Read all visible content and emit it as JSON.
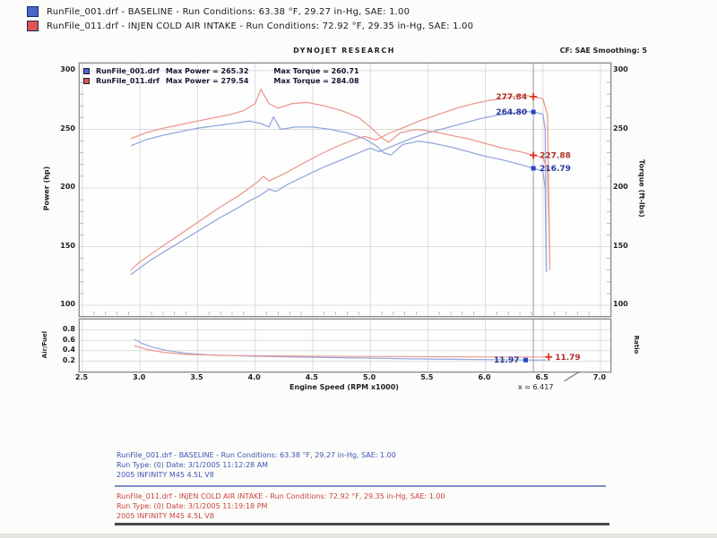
{
  "header": {
    "runs": [
      {
        "swatch_color": "#4a66cc",
        "text": "RunFile_001.drf - BASELINE  -  Run Conditions: 63.38 °F, 29.27 in-Hg, SAE: 1.00"
      },
      {
        "swatch_color": "#e05450",
        "text": "RunFile_011.drf - INJEN COLD AIR INTAKE  -  Run Conditions: 72.92 °F, 29.35 in-Hg, SAE: 1.00"
      }
    ]
  },
  "chart": {
    "brand": "DYNOJET RESEARCH",
    "correction": "CF: SAE   Smoothing: 5",
    "legend": [
      {
        "swatch_color": "#4a66cc",
        "file": "RunFile_001.drf",
        "max_power": "Max Power = 265.32",
        "max_torque": "Max Torque = 260.71"
      },
      {
        "swatch_color": "#e05450",
        "file": "RunFile_011.drf",
        "max_power": "Max Power = 279.54",
        "max_torque": "Max Torque = 284.08"
      }
    ],
    "x_axis_title": "Engine Speed (RPM x1000)",
    "cursor_annotation": "x = 6.417"
  },
  "chart_data": {
    "type": "line",
    "title": "DYNOJET RESEARCH",
    "xlabel": "Engine Speed (RPM x1000)",
    "x_range": [
      2.5,
      7.0
    ],
    "x_ticks": [
      2.5,
      3.0,
      3.5,
      4.0,
      4.5,
      5.0,
      5.5,
      6.0,
      6.5,
      7.0
    ],
    "cursor_x": 6.417,
    "grid": true,
    "main_panel": {
      "left_axis": {
        "label": "Power (hp)",
        "range": [
          100,
          300
        ],
        "ticks": [
          300,
          250,
          200,
          150,
          100
        ]
      },
      "right_axis": {
        "label": "Torque (ft-lbs)",
        "range": [
          100,
          300
        ],
        "ticks": [
          300,
          250,
          200,
          150,
          100
        ]
      },
      "series": [
        {
          "name": "baseline-power",
          "color": "#93a8dc",
          "axis": "left",
          "points": [
            [
              2.92,
              126
            ],
            [
              3.0,
              132
            ],
            [
              3.1,
              139
            ],
            [
              3.25,
              148
            ],
            [
              3.4,
              157
            ],
            [
              3.55,
              166
            ],
            [
              3.7,
              175
            ],
            [
              3.85,
              183
            ],
            [
              3.95,
              189
            ],
            [
              4.05,
              194
            ],
            [
              4.12,
              199
            ],
            [
              4.18,
              197
            ],
            [
              4.3,
              204
            ],
            [
              4.45,
              211
            ],
            [
              4.6,
              218
            ],
            [
              4.75,
              224
            ],
            [
              4.9,
              230
            ],
            [
              5.0,
              234
            ],
            [
              5.08,
              231
            ],
            [
              5.2,
              236
            ],
            [
              5.35,
              242
            ],
            [
              5.5,
              247
            ],
            [
              5.65,
              251
            ],
            [
              5.8,
              255
            ],
            [
              5.95,
              259
            ],
            [
              6.1,
              262
            ],
            [
              6.25,
              264
            ],
            [
              6.35,
              265.3
            ],
            [
              6.42,
              264.8
            ],
            [
              6.5,
              263
            ],
            [
              6.52,
              250
            ],
            [
              6.53,
              128
            ]
          ]
        },
        {
          "name": "injen-power",
          "color": "#eb9a90",
          "axis": "left",
          "points": [
            [
              2.92,
              130
            ],
            [
              3.0,
              137
            ],
            [
              3.1,
              144
            ],
            [
              3.25,
              154
            ],
            [
              3.4,
              164
            ],
            [
              3.55,
              174
            ],
            [
              3.7,
              184
            ],
            [
              3.85,
              193
            ],
            [
              3.95,
              200
            ],
            [
              4.02,
              205
            ],
            [
              4.07,
              210
            ],
            [
              4.12,
              206
            ],
            [
              4.25,
              212
            ],
            [
              4.4,
              220
            ],
            [
              4.55,
              228
            ],
            [
              4.7,
              235
            ],
            [
              4.85,
              241
            ],
            [
              4.95,
              244
            ],
            [
              5.05,
              241
            ],
            [
              5.15,
              246
            ],
            [
              5.3,
              252
            ],
            [
              5.45,
              258
            ],
            [
              5.6,
              263
            ],
            [
              5.75,
              268
            ],
            [
              5.9,
              272
            ],
            [
              6.05,
              275
            ],
            [
              6.2,
              277
            ],
            [
              6.32,
              279.5
            ],
            [
              6.42,
              277.8
            ],
            [
              6.5,
              276
            ],
            [
              6.54,
              262
            ],
            [
              6.56,
              130
            ]
          ]
        },
        {
          "name": "baseline-torque",
          "color": "#93a8dc",
          "axis": "right",
          "points": [
            [
              2.92,
              236
            ],
            [
              3.05,
              241
            ],
            [
              3.2,
              245
            ],
            [
              3.35,
              248
            ],
            [
              3.5,
              251
            ],
            [
              3.65,
              253
            ],
            [
              3.8,
              255
            ],
            [
              3.95,
              257
            ],
            [
              4.05,
              255
            ],
            [
              4.12,
              252
            ],
            [
              4.16,
              260.7
            ],
            [
              4.22,
              250
            ],
            [
              4.35,
              252
            ],
            [
              4.5,
              252
            ],
            [
              4.65,
              250
            ],
            [
              4.8,
              247
            ],
            [
              4.95,
              242
            ],
            [
              5.05,
              236
            ],
            [
              5.12,
              230
            ],
            [
              5.18,
              228
            ],
            [
              5.28,
              237
            ],
            [
              5.42,
              240
            ],
            [
              5.55,
              238
            ],
            [
              5.7,
              235
            ],
            [
              5.85,
              231
            ],
            [
              6.0,
              227
            ],
            [
              6.15,
              224
            ],
            [
              6.3,
              220
            ],
            [
              6.42,
              216.8
            ],
            [
              6.5,
              214
            ],
            [
              6.52,
              200
            ],
            [
              6.53,
              130
            ]
          ]
        },
        {
          "name": "injen-torque",
          "color": "#eb9a90",
          "axis": "right",
          "points": [
            [
              2.92,
              242
            ],
            [
              3.05,
              247
            ],
            [
              3.2,
              251
            ],
            [
              3.35,
              254
            ],
            [
              3.5,
              257
            ],
            [
              3.65,
              260
            ],
            [
              3.8,
              263
            ],
            [
              3.9,
              266
            ],
            [
              4.0,
              272
            ],
            [
              4.05,
              284.1
            ],
            [
              4.12,
              272
            ],
            [
              4.2,
              268
            ],
            [
              4.32,
              272
            ],
            [
              4.45,
              273
            ],
            [
              4.6,
              270
            ],
            [
              4.75,
              266
            ],
            [
              4.9,
              260
            ],
            [
              5.0,
              252
            ],
            [
              5.1,
              243
            ],
            [
              5.16,
              239
            ],
            [
              5.26,
              247
            ],
            [
              5.4,
              250
            ],
            [
              5.55,
              248
            ],
            [
              5.7,
              245
            ],
            [
              5.85,
              242
            ],
            [
              6.0,
              238
            ],
            [
              6.15,
              234
            ],
            [
              6.3,
              231
            ],
            [
              6.42,
              227.9
            ],
            [
              6.5,
              226
            ],
            [
              6.54,
              215
            ],
            [
              6.56,
              135
            ]
          ]
        }
      ],
      "labels": [
        {
          "text": "277.84",
          "x": 6.417,
          "value": 277.84,
          "series": "injen-power",
          "marker": "cross",
          "color": "#b03028",
          "marker_color": "#e03020",
          "side": "left"
        },
        {
          "text": "264.80",
          "x": 6.417,
          "value": 264.8,
          "series": "baseline-power",
          "marker": "square",
          "color": "#283898",
          "marker_color": "#2848c0",
          "side": "left"
        },
        {
          "text": "227.88",
          "x": 6.417,
          "value": 227.88,
          "series": "injen-torque",
          "marker": "cross",
          "color": "#b03028",
          "marker_color": "#e03020",
          "side": "right"
        },
        {
          "text": "216.79",
          "x": 6.417,
          "value": 216.79,
          "series": "baseline-torque",
          "marker": "square",
          "color": "#283898",
          "marker_color": "#2848c0",
          "side": "right"
        }
      ]
    },
    "af_panel": {
      "left_axis": {
        "label": "Air/Fuel",
        "range": [
          0,
          1
        ],
        "ticks": [
          0.8,
          0.6,
          0.4,
          0.2
        ]
      },
      "right_axis": {
        "label": "Ratio"
      },
      "series": [
        {
          "name": "baseline-airfuel",
          "color": "#93a8dc",
          "points": [
            [
              2.95,
              0.62
            ],
            [
              3.02,
              0.54
            ],
            [
              3.12,
              0.46
            ],
            [
              3.25,
              0.4
            ],
            [
              3.4,
              0.35
            ],
            [
              3.6,
              0.32
            ],
            [
              3.9,
              0.3
            ],
            [
              4.3,
              0.28
            ],
            [
              4.9,
              0.26
            ],
            [
              5.5,
              0.24
            ],
            [
              6.0,
              0.23
            ],
            [
              6.42,
              0.22
            ],
            [
              6.53,
              0.22
            ]
          ]
        },
        {
          "name": "injen-airfuel",
          "color": "#eb9a90",
          "points": [
            [
              2.95,
              0.5
            ],
            [
              3.05,
              0.43
            ],
            [
              3.2,
              0.37
            ],
            [
              3.4,
              0.33
            ],
            [
              3.7,
              0.31
            ],
            [
              4.2,
              0.3
            ],
            [
              4.9,
              0.29
            ],
            [
              5.6,
              0.285
            ],
            [
              6.1,
              0.28
            ],
            [
              6.56,
              0.28
            ]
          ]
        }
      ],
      "labels": [
        {
          "text": "11.97",
          "x": 6.35,
          "value": 0.22,
          "series": "baseline-airfuel",
          "marker": "square",
          "color": "#283898",
          "marker_color": "#2848c0",
          "side": "left"
        },
        {
          "text": "11.79",
          "x": 6.55,
          "value": 0.28,
          "series": "injen-airfuel",
          "marker": "cross",
          "color": "#b03028",
          "marker_color": "#e03020",
          "side": "right"
        }
      ]
    }
  },
  "footer": {
    "blue_block": {
      "color": "#4152b4",
      "lines": [
        "RunFile_001.drf - BASELINE  -  Run Conditions: 63.38 °F, 29.27 in-Hg, SAE: 1.00",
        "Run Type: (0)   Date: 3/1/2005 11:12:28 AM",
        "2005 INFINITY M45 4.5L V8"
      ]
    },
    "red_block": {
      "color": "#c94540",
      "lines": [
        "RunFile_011.drf - INJEN COLD AIR INTAKE  -  Run Conditions: 72.92 °F, 29.35 in-Hg, SAE: 1.00",
        "Run Type: (0)   Date: 3/1/2005 11:19:18 PM",
        "2005 INFINITY M45 4.5L V8"
      ]
    }
  }
}
